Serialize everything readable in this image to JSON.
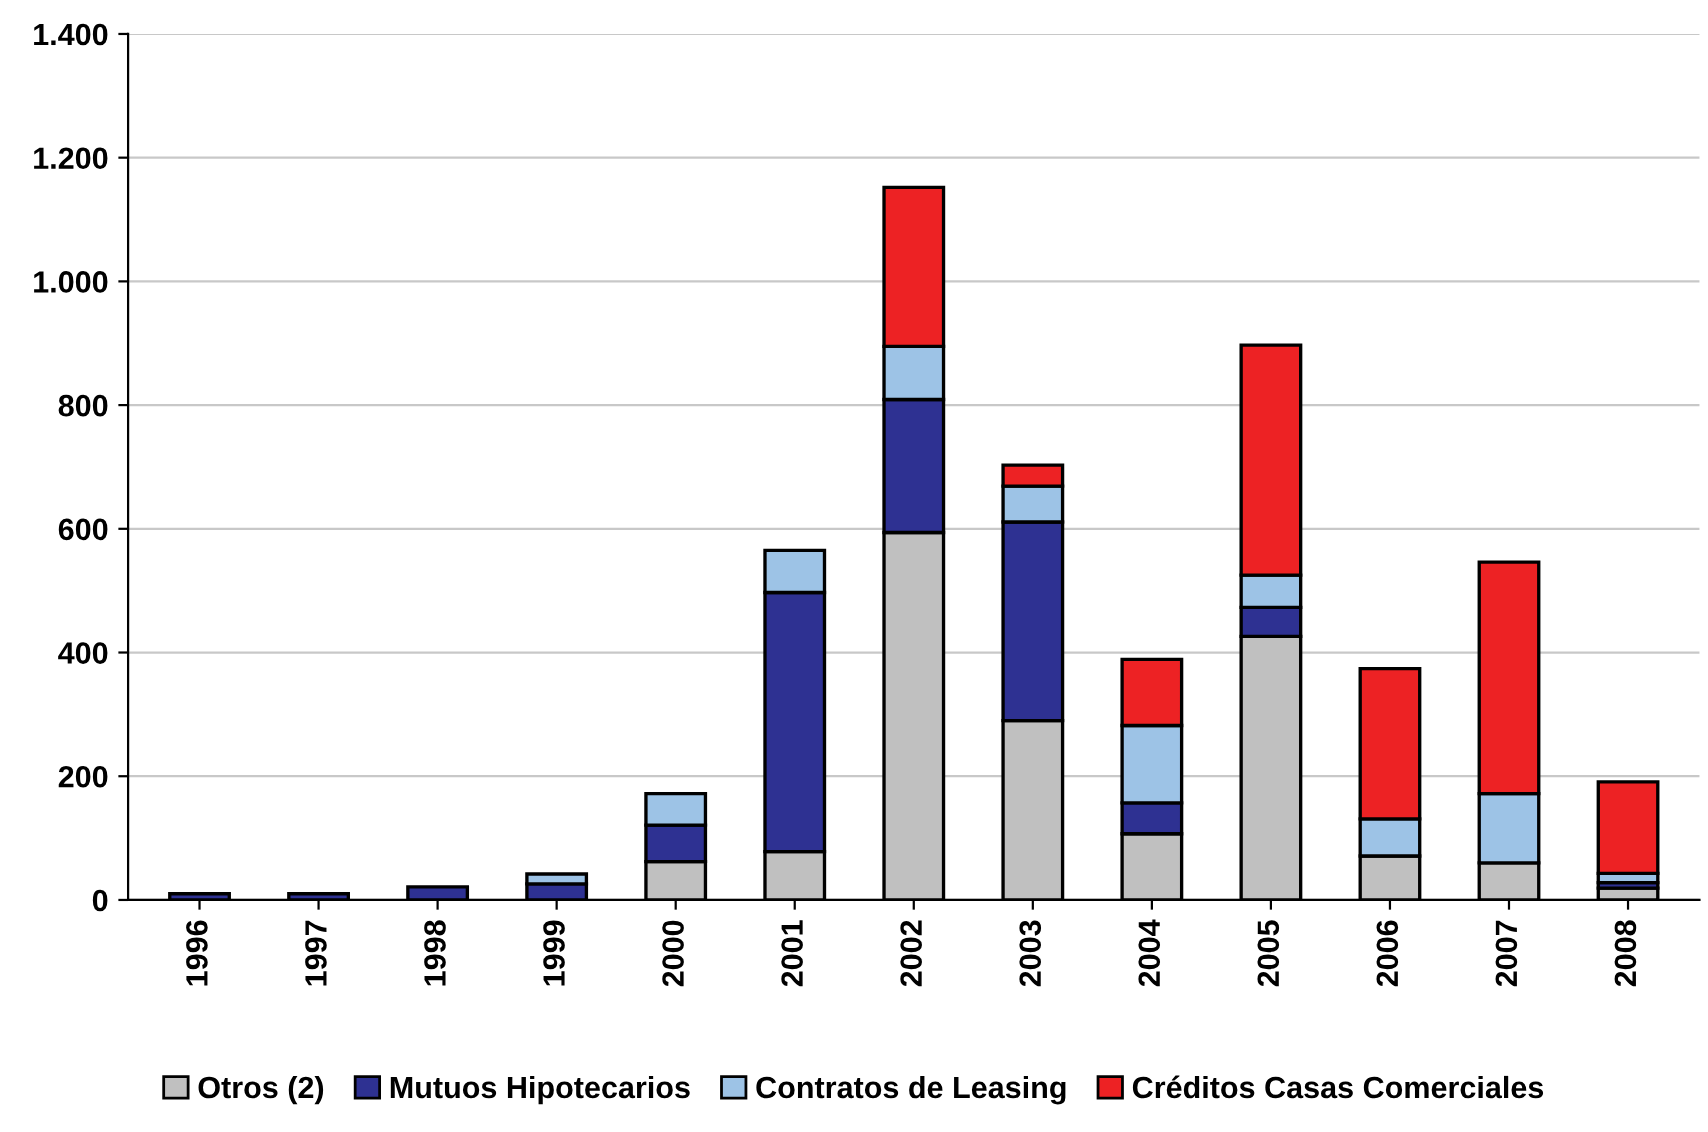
{
  "chart_data": {
    "type": "bar",
    "stacked": true,
    "categories": [
      "1996",
      "1997",
      "1998",
      "1999",
      "2000",
      "2001",
      "2002",
      "2003",
      "2004",
      "2005",
      "2006",
      "2007",
      "2008"
    ],
    "series": [
      {
        "name": "Otros (2)",
        "color": "#c0c0c0",
        "values": [
          null,
          null,
          null,
          null,
          62,
          78,
          594,
          290,
          107,
          426,
          71,
          60,
          19
        ]
      },
      {
        "name": "Mutuos Hipotecarios",
        "color": "#2e3192",
        "values": [
          10,
          10,
          21,
          26,
          59,
          419,
          215,
          321,
          50,
          47,
          null,
          null,
          9
        ]
      },
      {
        "name": "Contratos de Leasing",
        "color": "#9dc3e6",
        "values": [
          null,
          null,
          null,
          16,
          51,
          68,
          86,
          58,
          125,
          52,
          60,
          112,
          15
        ]
      },
      {
        "name": "Créditos Casas Comerciales",
        "color": "#ed2224",
        "values": [
          null,
          null,
          null,
          null,
          null,
          null,
          257,
          34,
          107,
          372,
          243,
          374,
          148
        ]
      }
    ],
    "ylim": [
      0,
      1400
    ],
    "yticks": [
      0,
      {
        "value": 200,
        "label": "200"
      },
      {
        "value": 400,
        "label": "400"
      },
      {
        "value": 600,
        "label": "600"
      },
      {
        "value": 800,
        "label": "800"
      },
      {
        "value": 1000,
        "label": "1.000"
      },
      {
        "value": 1200,
        "label": "1.200"
      },
      {
        "value": 1400,
        "label": "1.400"
      }
    ],
    "grid": "y",
    "legend": "bottom"
  }
}
